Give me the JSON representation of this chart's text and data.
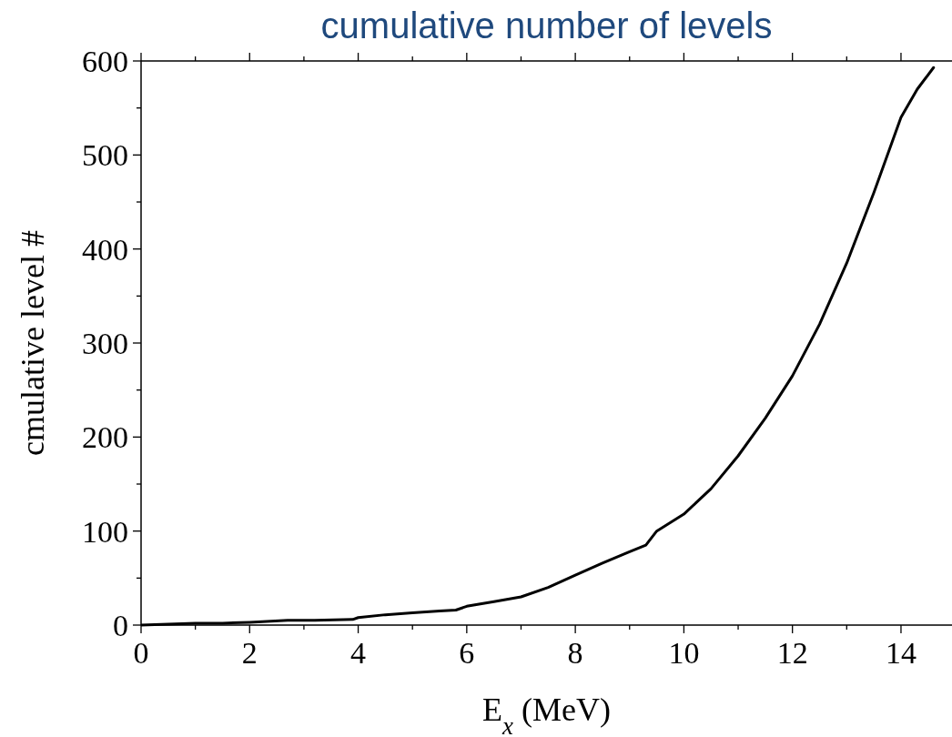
{
  "chart_data": {
    "type": "line",
    "title": "cumulative number of levels",
    "xlabel": "E$_{x}$ (MeV)",
    "ylabel": "cmulative level #",
    "x": [
      0,
      0.5,
      1,
      1.5,
      2,
      2.7,
      3.2,
      3.9,
      4,
      4.5,
      5,
      5.5,
      5.8,
      6,
      6.5,
      7,
      7.5,
      8,
      8.5,
      9,
      9.3,
      9.5,
      10,
      10.5,
      11,
      11.5,
      12,
      12.5,
      13,
      13.5,
      14,
      14.3,
      14.6
    ],
    "series": [
      {
        "color": "#000000",
        "values": [
          0,
          1,
          2,
          2,
          3,
          5,
          5,
          6,
          8,
          11,
          13,
          15,
          16,
          20,
          25,
          30,
          40,
          53,
          66,
          78,
          85,
          100,
          118,
          145,
          180,
          220,
          265,
          320,
          385,
          460,
          540,
          570,
          593
        ]
      }
    ],
    "xlim": [
      0,
      15
    ],
    "ylim": [
      0,
      600
    ],
    "xticks": [
      0,
      {
        "value": 1,
        "label": null
      },
      2,
      {
        "value": 3,
        "label": null
      },
      4,
      {
        "value": 5,
        "label": null
      },
      6,
      {
        "value": 7,
        "label": null
      },
      8,
      {
        "value": 9,
        "label": null
      },
      10,
      {
        "value": 11,
        "label": null
      },
      12,
      {
        "value": 13,
        "label": null
      },
      14
    ],
    "yticks": [
      0,
      {
        "value": 50,
        "label": null
      },
      100,
      {
        "value": 150,
        "label": null
      },
      200,
      {
        "value": 250,
        "label": null
      },
      300,
      {
        "value": 350,
        "label": null
      },
      400,
      {
        "value": 450,
        "label": null
      },
      500,
      {
        "value": 550,
        "label": null
      },
      600
    ],
    "grid": false,
    "marker": "none",
    "line_style": "solid"
  }
}
